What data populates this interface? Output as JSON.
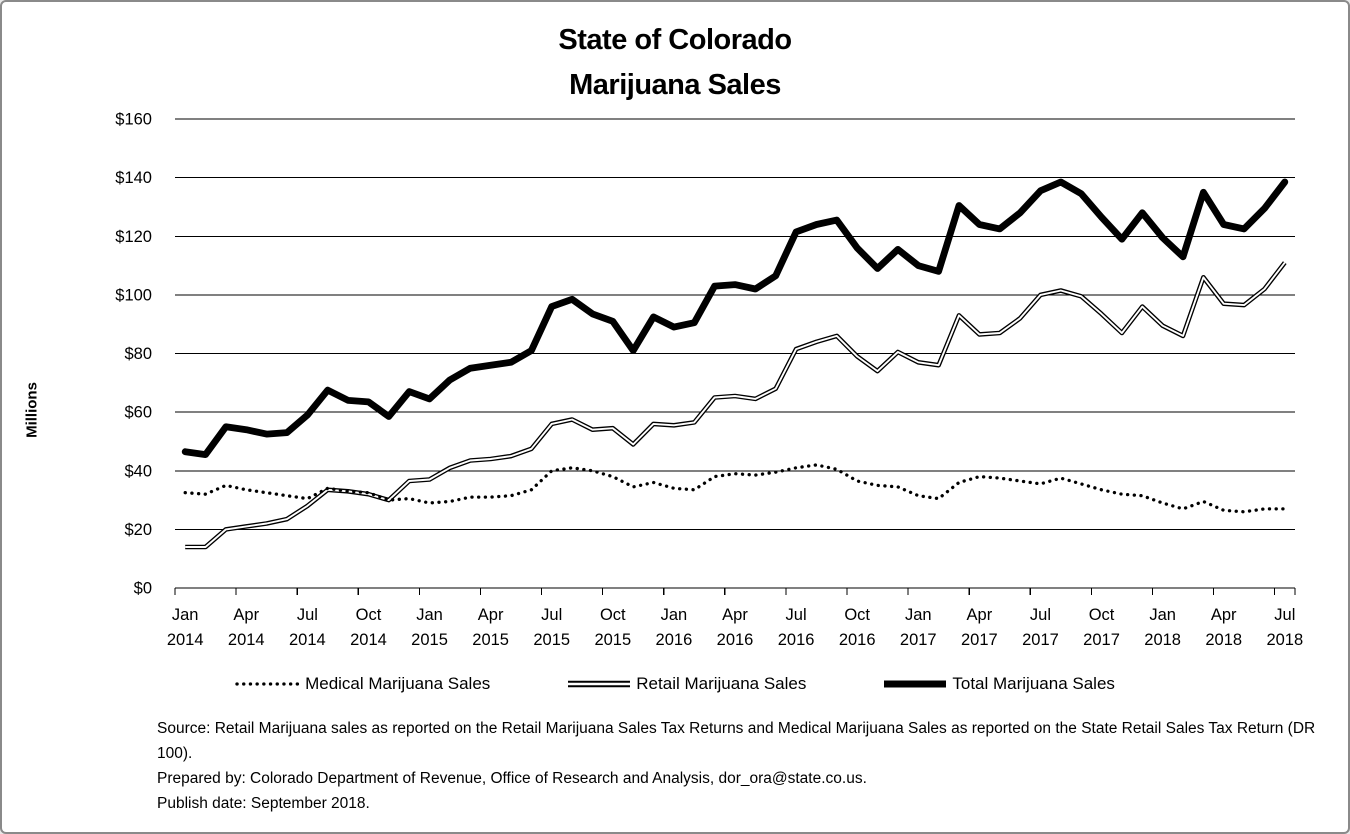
{
  "window": {
    "background": "#ffffff",
    "border_color": "#8a8a8a",
    "line_color": "#000000"
  },
  "title": {
    "line1": "State of Colorado",
    "line2": "Marijuana Sales"
  },
  "chart_data": {
    "type": "line",
    "title": "State of Colorado Marijuana Sales",
    "xlabel": "",
    "ylabel": "Millions",
    "ylim": [
      0,
      160
    ],
    "ytick_step": 20,
    "ytick_format": "dollars",
    "grid": "horizontal",
    "legend_position": "bottom",
    "ytick_labels": [
      "$0",
      "$20",
      "$40",
      "$60",
      "$80",
      "$100",
      "$120",
      "$140",
      "$160"
    ],
    "xtick_labels": [
      {
        "month": "Jan",
        "year": "2014"
      },
      {
        "month": "Apr",
        "year": "2014"
      },
      {
        "month": "Jul",
        "year": "2014"
      },
      {
        "month": "Oct",
        "year": "2014"
      },
      {
        "month": "Jan",
        "year": "2015"
      },
      {
        "month": "Apr",
        "year": "2015"
      },
      {
        "month": "Jul",
        "year": "2015"
      },
      {
        "month": "Oct",
        "year": "2015"
      },
      {
        "month": "Jan",
        "year": "2016"
      },
      {
        "month": "Apr",
        "year": "2016"
      },
      {
        "month": "Jul",
        "year": "2016"
      },
      {
        "month": "Oct",
        "year": "2016"
      },
      {
        "month": "Jan",
        "year": "2017"
      },
      {
        "month": "Apr",
        "year": "2017"
      },
      {
        "month": "Jul",
        "year": "2017"
      },
      {
        "month": "Oct",
        "year": "2017"
      },
      {
        "month": "Jan",
        "year": "2018"
      },
      {
        "month": "Apr",
        "year": "2018"
      },
      {
        "month": "Jul",
        "year": "2018"
      }
    ],
    "x": [
      "Jan 2014",
      "Feb 2014",
      "Mar 2014",
      "Apr 2014",
      "May 2014",
      "Jun 2014",
      "Jul 2014",
      "Aug 2014",
      "Sep 2014",
      "Oct 2014",
      "Nov 2014",
      "Dec 2014",
      "Jan 2015",
      "Feb 2015",
      "Mar 2015",
      "Apr 2015",
      "May 2015",
      "Jun 2015",
      "Jul 2015",
      "Aug 2015",
      "Sep 2015",
      "Oct 2015",
      "Nov 2015",
      "Dec 2015",
      "Jan 2016",
      "Feb 2016",
      "Mar 2016",
      "Apr 2016",
      "May 2016",
      "Jun 2016",
      "Jul 2016",
      "Aug 2016",
      "Sep 2016",
      "Oct 2016",
      "Nov 2016",
      "Dec 2016",
      "Jan 2017",
      "Feb 2017",
      "Mar 2017",
      "Apr 2017",
      "May 2017",
      "Jun 2017",
      "Jul 2017",
      "Aug 2017",
      "Sep 2017",
      "Oct 2017",
      "Nov 2017",
      "Dec 2017",
      "Jan 2018",
      "Feb 2018",
      "Mar 2018",
      "Apr 2018",
      "May 2018",
      "Jun 2018",
      "Jul 2018"
    ],
    "series": [
      {
        "name": "Medical Marijuana Sales",
        "style": "dotted",
        "color": "#000000",
        "values": [
          32.5,
          32,
          35,
          33.5,
          32.5,
          31.5,
          30.5,
          34,
          33,
          32.5,
          30,
          30.5,
          29,
          29.5,
          31,
          31,
          31.5,
          33.5,
          40,
          41,
          40,
          38,
          34.5,
          36,
          34,
          33.5,
          38,
          39,
          38.5,
          39.5,
          41,
          42,
          40.5,
          36.5,
          35,
          34.5,
          31.5,
          30.5,
          36,
          38,
          37.5,
          36.5,
          35.5,
          37.5,
          35.5,
          33.5,
          32,
          31.5,
          29,
          27,
          29.5,
          26.5,
          26,
          27,
          27
        ]
      },
      {
        "name": "Retail Marijuana Sales",
        "style": "double",
        "color": "#000000",
        "values": [
          14,
          14,
          20,
          21,
          22,
          23.5,
          28,
          33.5,
          33,
          32,
          30,
          36.5,
          37,
          41,
          43.5,
          44,
          45,
          47.5,
          56,
          57.5,
          54,
          54.5,
          49,
          56,
          55.5,
          56.5,
          65,
          65.5,
          64.5,
          68,
          81.5,
          84,
          86,
          79,
          74,
          80.5,
          77,
          76,
          93,
          86.5,
          87,
          92,
          100,
          101.5,
          99.5,
          93.5,
          87,
          96,
          89.5,
          86,
          106,
          97,
          96.5,
          102,
          111
        ]
      },
      {
        "name": "Total Marijuana Sales",
        "style": "thick",
        "color": "#000000",
        "values": [
          46.5,
          45.5,
          55,
          54,
          52.5,
          53,
          59,
          67.5,
          64,
          63.5,
          58.5,
          67,
          64.5,
          71,
          75,
          76,
          77,
          81,
          96,
          98.5,
          93.5,
          91,
          81,
          92.5,
          89,
          90.5,
          103,
          103.5,
          102,
          106.5,
          121.5,
          124,
          125.5,
          116,
          109,
          115.5,
          110,
          108,
          130.5,
          124,
          122.5,
          128,
          135.5,
          138.5,
          134.5,
          126.5,
          119,
          128,
          119.5,
          113,
          135,
          124,
          122.5,
          129.5,
          138.5
        ]
      }
    ]
  },
  "footer": {
    "source": "Source: Retail Marijuana sales as reported on the Retail Marijuana Sales Tax Returns and Medical Marijuana Sales as reported on the State Retail Sales Tax Return (DR 100).",
    "prepared_by": "Prepared by: Colorado Department of Revenue, Office of Research and Analysis, dor_ora@state.co.us.",
    "publish_date": "Publish date: September 2018."
  }
}
